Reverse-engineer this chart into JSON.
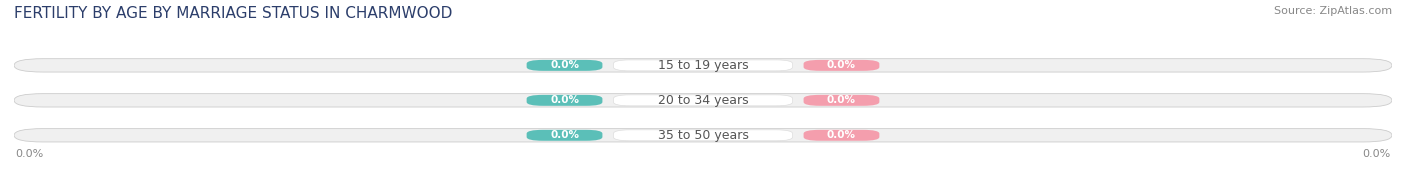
{
  "title": "FERTILITY BY AGE BY MARRIAGE STATUS IN CHARMWOOD",
  "source": "Source: ZipAtlas.com",
  "age_groups": [
    "15 to 19 years",
    "20 to 34 years",
    "35 to 50 years"
  ],
  "married_values": [
    "0.0%",
    "0.0%",
    "0.0%"
  ],
  "unmarried_values": [
    "0.0%",
    "0.0%",
    "0.0%"
  ],
  "married_color": "#5BBFB8",
  "unmarried_color": "#F49EAD",
  "bar_bg_color": "#F0F0F0",
  "bar_border_color": "#CCCCCC",
  "bar_bg_color2": "#E8E8E8",
  "title_color": "#2C3E6B",
  "source_color": "#888888",
  "label_color": "#555555",
  "axis_tick_color": "#888888",
  "background_color": "#FFFFFF",
  "title_fontsize": 11,
  "source_fontsize": 8,
  "bar_label_fontsize": 7.5,
  "age_fontsize": 9,
  "legend_fontsize": 9,
  "axis_fontsize": 8
}
